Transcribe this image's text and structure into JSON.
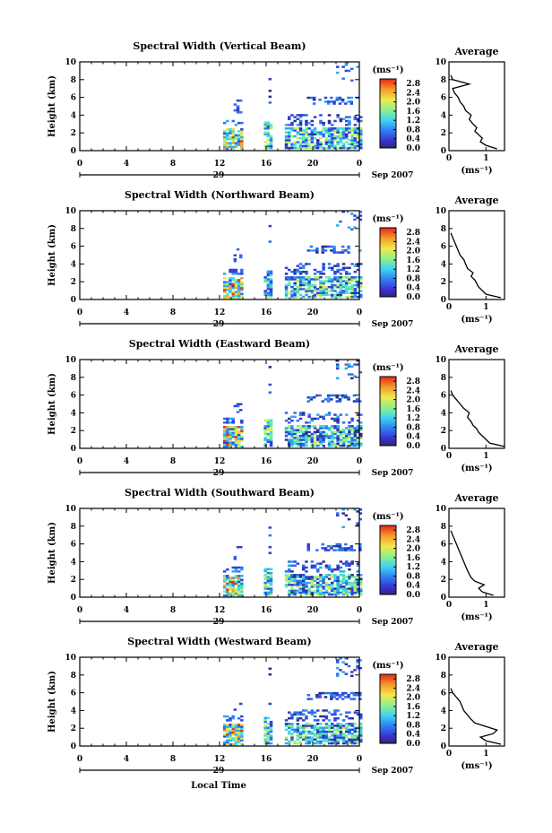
{
  "figure": {
    "xlabel": "Local Time",
    "date_label": "Sep 2007",
    "day_label": "29",
    "colorbar_unit": "(ms⁻¹)",
    "avg_title": "Average",
    "avg_xlabel": "(ms⁻¹)"
  },
  "chart_data": [
    {
      "type": "heatmap",
      "title": "Spectral Width (Vertical Beam)",
      "ylabel": "Height (km)",
      "x_ticks": [
        "0",
        "4",
        "8",
        "12",
        "16",
        "20",
        "0"
      ],
      "xlim": [
        0,
        24
      ],
      "y_ticks": [
        "0",
        "2",
        "4",
        "6",
        "8",
        "10"
      ],
      "ylim": [
        0,
        10
      ],
      "colorbar": {
        "ticks": [
          "0.0",
          "0.4",
          "0.8",
          "1.2",
          "1.6",
          "2.0",
          "2.4",
          "2.8"
        ],
        "range": [
          0,
          3.0
        ]
      },
      "average": {
        "x_ticks": [
          "0",
          "1"
        ],
        "xlim": [
          0,
          1.5
        ],
        "height": [
          0.2,
          0.6,
          1.0,
          1.4,
          1.8,
          2.2,
          2.6,
          3.0,
          3.5,
          4.0,
          4.5,
          5.0,
          5.5,
          6.0,
          6.5,
          7.0,
          7.5,
          8.0,
          8.5
        ],
        "value": [
          1.3,
          1.0,
          0.85,
          0.9,
          0.8,
          0.7,
          0.75,
          0.65,
          0.55,
          0.6,
          0.45,
          0.4,
          0.3,
          0.25,
          0.15,
          0.1,
          0.55,
          0.1,
          0.05
        ]
      }
    },
    {
      "type": "heatmap",
      "title": "Spectral Width (Northward Beam)",
      "ylabel": "Height (km)",
      "x_ticks": [
        "0",
        "4",
        "8",
        "12",
        "16",
        "20",
        "0"
      ],
      "xlim": [
        0,
        24
      ],
      "y_ticks": [
        "0",
        "2",
        "4",
        "6",
        "8",
        "10"
      ],
      "ylim": [
        0,
        10
      ],
      "colorbar": {
        "ticks": [
          "0.0",
          "0.4",
          "0.8",
          "1.2",
          "1.6",
          "2.0",
          "2.4",
          "2.8"
        ],
        "range": [
          0,
          3.0
        ]
      },
      "average": {
        "x_ticks": [
          "0",
          "1"
        ],
        "xlim": [
          0,
          1.5
        ],
        "height": [
          0.2,
          0.6,
          1.0,
          1.4,
          1.8,
          2.2,
          2.6,
          3.0,
          3.5,
          4.0,
          4.5,
          5.0,
          5.5,
          6.0,
          6.5,
          7.0,
          7.5
        ],
        "value": [
          1.4,
          1.0,
          0.9,
          0.8,
          0.75,
          0.7,
          0.6,
          0.65,
          0.5,
          0.45,
          0.4,
          0.3,
          0.25,
          0.2,
          0.15,
          0.1,
          0.05
        ]
      }
    },
    {
      "type": "heatmap",
      "title": "Spectral Width (Eastward Beam)",
      "ylabel": "Height (km)",
      "x_ticks": [
        "0",
        "4",
        "8",
        "12",
        "16",
        "20",
        "0"
      ],
      "xlim": [
        0,
        24
      ],
      "y_ticks": [
        "0",
        "2",
        "4",
        "6",
        "8",
        "10"
      ],
      "ylim": [
        0,
        10
      ],
      "colorbar": {
        "ticks": [
          "0.0",
          "0.4",
          "0.8",
          "1.2",
          "1.6",
          "2.0",
          "2.4",
          "2.8"
        ],
        "range": [
          0,
          3.0
        ]
      },
      "average": {
        "x_ticks": [
          "0",
          "1"
        ],
        "xlim": [
          0,
          1.5
        ],
        "height": [
          0.2,
          0.6,
          1.0,
          1.4,
          1.8,
          2.2,
          2.6,
          3.0,
          3.5,
          4.0,
          4.5,
          5.0,
          5.5,
          6.0,
          6.5
        ],
        "value": [
          1.5,
          1.1,
          1.0,
          0.9,
          0.8,
          0.75,
          0.65,
          0.6,
          0.5,
          0.55,
          0.4,
          0.3,
          0.2,
          0.1,
          0.05
        ]
      }
    },
    {
      "type": "heatmap",
      "title": "Spectral Width (Southward Beam)",
      "ylabel": "Height (km)",
      "x_ticks": [
        "0",
        "4",
        "8",
        "12",
        "16",
        "20",
        "0"
      ],
      "xlim": [
        0,
        24
      ],
      "y_ticks": [
        "0",
        "2",
        "4",
        "6",
        "8",
        "10"
      ],
      "ylim": [
        0,
        10
      ],
      "colorbar": {
        "ticks": [
          "0.0",
          "0.4",
          "0.8",
          "1.2",
          "1.6",
          "2.0",
          "2.4",
          "2.8"
        ],
        "range": [
          0,
          3.0
        ]
      },
      "average": {
        "x_ticks": [
          "0",
          "1"
        ],
        "xlim": [
          0,
          1.5
        ],
        "height": [
          0.2,
          0.6,
          1.0,
          1.4,
          1.8,
          2.2,
          2.6,
          3.0,
          3.5,
          4.0,
          4.5,
          5.0,
          5.5,
          6.0,
          6.5,
          7.0,
          7.5
        ],
        "value": [
          1.2,
          0.9,
          0.8,
          0.95,
          0.7,
          0.6,
          0.55,
          0.5,
          0.45,
          0.4,
          0.35,
          0.3,
          0.25,
          0.2,
          0.15,
          0.1,
          0.05
        ]
      }
    },
    {
      "type": "heatmap",
      "title": "Spectral Width (Westward Beam)",
      "ylabel": "Height (km)",
      "x_ticks": [
        "0",
        "4",
        "8",
        "12",
        "16",
        "20",
        "0"
      ],
      "xlim": [
        0,
        24
      ],
      "y_ticks": [
        "0",
        "2",
        "4",
        "6",
        "8",
        "10"
      ],
      "ylim": [
        0,
        10
      ],
      "colorbar": {
        "ticks": [
          "0.0",
          "0.4",
          "0.8",
          "1.2",
          "1.6",
          "2.0",
          "2.4",
          "2.8"
        ],
        "range": [
          0,
          3.0
        ]
      },
      "average": {
        "x_ticks": [
          "0",
          "1"
        ],
        "xlim": [
          0,
          1.5
        ],
        "height": [
          0.2,
          0.6,
          1.0,
          1.4,
          1.8,
          2.2,
          2.6,
          3.0,
          3.5,
          4.0,
          4.5,
          5.0,
          5.5,
          6.0,
          6.5
        ],
        "value": [
          1.4,
          1.0,
          0.85,
          1.2,
          1.3,
          1.0,
          0.7,
          0.6,
          0.5,
          0.4,
          0.35,
          0.3,
          0.2,
          0.1,
          0.05
        ]
      }
    }
  ]
}
